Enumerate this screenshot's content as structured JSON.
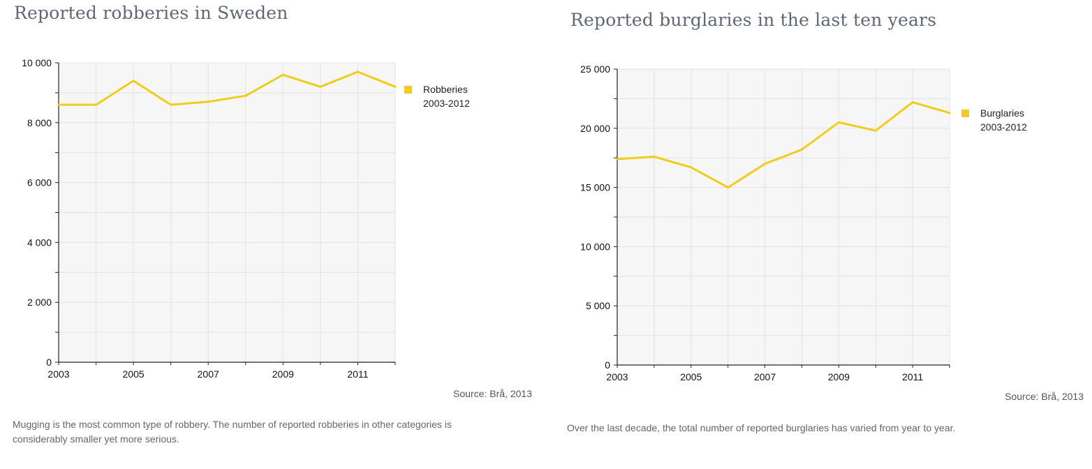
{
  "chart_data": [
    {
      "type": "line",
      "title": "Reported robberies in Sweden",
      "x": [
        2003,
        2004,
        2005,
        2006,
        2007,
        2008,
        2009,
        2010,
        2011,
        2012
      ],
      "x_ticks": [
        "2003",
        "2005",
        "2007",
        "2009",
        "2011"
      ],
      "y_ticks": [
        "0",
        "2 000",
        "4 000",
        "6 000",
        "8 000",
        "10 000"
      ],
      "ylim": [
        0,
        10000
      ],
      "grid": true,
      "legend_position": "right",
      "series": [
        {
          "name": "Robberies 2003-2012",
          "legend_lines": [
            "Robberies",
            "2003-2012"
          ],
          "color": "#f2cc1b",
          "values": [
            8600,
            8600,
            9400,
            8600,
            8700,
            8900,
            9600,
            9200,
            9700,
            9200
          ]
        }
      ],
      "source": "Source: Brå, 2013",
      "caption_lines": [
        "Mugging is the most common type of robbery. The number of reported robberies in other categories is",
        "considerably smaller yet more serious."
      ]
    },
    {
      "type": "line",
      "title": "Reported burglaries in the last ten years",
      "x": [
        2003,
        2004,
        2005,
        2006,
        2007,
        2008,
        2009,
        2010,
        2011,
        2012
      ],
      "x_ticks": [
        "2003",
        "2005",
        "2007",
        "2009",
        "2011"
      ],
      "y_ticks": [
        "0",
        "5 000",
        "10 000",
        "15 000",
        "20 000",
        "25 000"
      ],
      "ylim": [
        0,
        25000
      ],
      "grid": true,
      "legend_position": "right",
      "series": [
        {
          "name": "Burglaries 2003-2012",
          "legend_lines": [
            "Burglaries",
            "2003-2012"
          ],
          "color": "#f2cc1b",
          "values": [
            17400,
            17600,
            16700,
            15000,
            17000,
            18200,
            20500,
            19800,
            22200,
            21300
          ]
        }
      ],
      "source": "Source: Brå, 2013",
      "caption_lines": [
        "Over the last decade, the total number of reported burglaries has varied from year to year."
      ]
    }
  ]
}
